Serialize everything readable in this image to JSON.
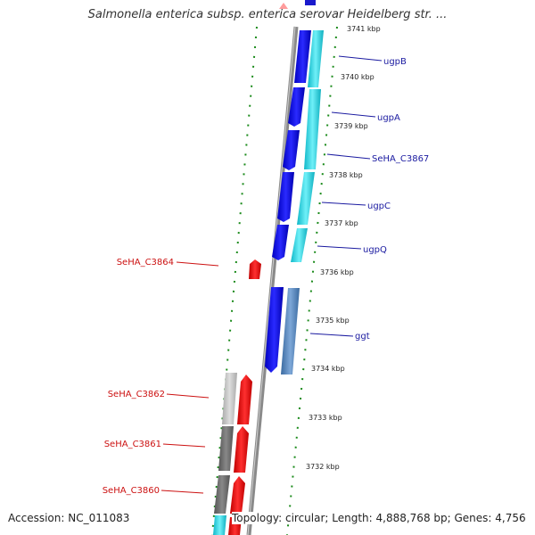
{
  "title": "Salmonella enterica subsp. enterica serovar Heidelberg str. ...",
  "accession": "Accession: NC_011083",
  "topology": "Topology: circular; Length: 4,888,768 bp; Genes: 4,756",
  "kbp_labels": [
    "3741 kbp",
    "3740 kbp",
    "3739 kbp",
    "3738 kbp",
    "3737 kbp",
    "3736 kbp",
    "3735 kbp",
    "3734 kbp",
    "3733 kbp",
    "3732 kbp"
  ],
  "genes_right": [
    {
      "name": "ugpB",
      "color": "#1a1aa0"
    },
    {
      "name": "ugpA",
      "color": "#1a1aa0"
    },
    {
      "name": "SeHA_C3867",
      "color": "#1a1aa0"
    },
    {
      "name": "ugpC",
      "color": "#1a1aa0"
    },
    {
      "name": "ugpQ",
      "color": "#1a1aa0"
    },
    {
      "name": "ggt",
      "color": "#1a1aa0"
    }
  ],
  "genes_left": [
    {
      "name": "SeHA_C3864",
      "color": "#cc1111"
    },
    {
      "name": "SeHA_C3862",
      "color": "#cc1111"
    },
    {
      "name": "SeHA_C3861",
      "color": "#cc1111"
    },
    {
      "name": "SeHA_C3860",
      "color": "#cc1111"
    }
  ],
  "colors": {
    "forward_cds": "#0a0ae8",
    "reverse_cds": "#ee1111",
    "forward_shade": "#22d4e0",
    "reverse_shade": "#777777",
    "backbone": "#8a8a8a",
    "gc_dots": "#1a8a1a"
  }
}
